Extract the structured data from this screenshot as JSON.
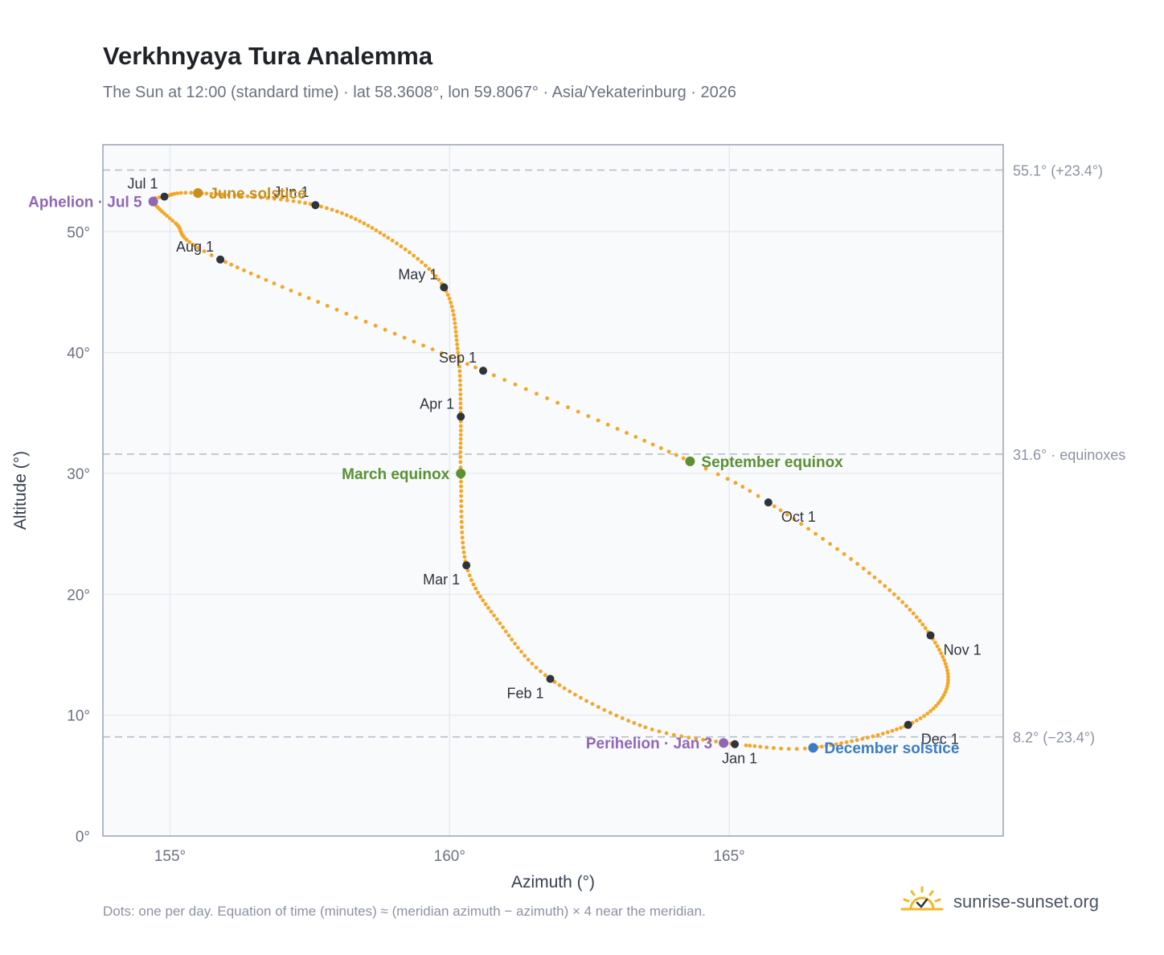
{
  "header": {
    "title": "Verkhnyaya Tura Analemma",
    "subtitle": "The Sun at 12:00 (standard time) · lat 58.3608°, lon 59.8067° · Asia/Yekaterinburg · 2026"
  },
  "footer": {
    "note": "Dots: one per day. Equation of time (minutes) ≈ (meridian azimuth − azimuth) × 4 near the meridian.",
    "brand": "sunrise-sunset.org"
  },
  "colors": {
    "curve": "#f5a623",
    "month_marker": "#2f343b",
    "solstice_june": "#c8901a",
    "solstice_december": "#3b7cc4",
    "equinox": "#5a9132",
    "apsis": "#9167b5",
    "reference_line": "#b6bfcc",
    "plot_bg": "#f8fafc",
    "axis_frame": "#9aa3b2"
  },
  "chart_data": {
    "type": "scatter",
    "xlabel": "Azimuth (°)",
    "ylabel": "Altitude (°)",
    "xlim": [
      153.8,
      169.9
    ],
    "ylim": [
      0,
      57.2
    ],
    "x_ticks": [
      155,
      160,
      165
    ],
    "x_tick_labels": [
      "155°",
      "160°",
      "165°"
    ],
    "y_ticks": [
      0,
      10,
      20,
      30,
      40,
      50
    ],
    "y_tick_labels": [
      "0°",
      "10°",
      "20°",
      "30°",
      "40°",
      "50°"
    ],
    "grid": true,
    "reference_lines": [
      {
        "y": 55.1,
        "label": "55.1° (+23.4°)"
      },
      {
        "y": 31.6,
        "label": "31.6° · equinoxes"
      },
      {
        "y": 8.2,
        "label": "8.2° (−23.4°)"
      }
    ],
    "analemma_path": [
      {
        "day": 1,
        "az": 165.1,
        "alt": 7.6
      },
      {
        "day": 15,
        "az": 163.5,
        "alt": 9.0
      },
      {
        "day": 32,
        "az": 161.8,
        "alt": 13.0
      },
      {
        "day": 46,
        "az": 160.9,
        "alt": 17.6
      },
      {
        "day": 60,
        "az": 160.3,
        "alt": 22.4
      },
      {
        "day": 79,
        "az": 160.2,
        "alt": 30.0
      },
      {
        "day": 91,
        "az": 160.2,
        "alt": 34.7
      },
      {
        "day": 105,
        "az": 160.15,
        "alt": 40.0
      },
      {
        "day": 121,
        "az": 159.9,
        "alt": 45.4
      },
      {
        "day": 136,
        "az": 158.9,
        "alt": 49.5
      },
      {
        "day": 152,
        "az": 157.6,
        "alt": 52.2
      },
      {
        "day": 172,
        "az": 155.5,
        "alt": 53.2
      },
      {
        "day": 182,
        "az": 154.9,
        "alt": 52.9
      },
      {
        "day": 186,
        "az": 154.7,
        "alt": 52.5
      },
      {
        "day": 197,
        "az": 155.1,
        "alt": 50.7
      },
      {
        "day": 213,
        "az": 155.9,
        "alt": 47.7
      },
      {
        "day": 244,
        "az": 160.6,
        "alt": 38.5
      },
      {
        "day": 266,
        "az": 164.3,
        "alt": 31.0
      },
      {
        "day": 274,
        "az": 165.7,
        "alt": 27.6
      },
      {
        "day": 290,
        "az": 167.6,
        "alt": 21.4
      },
      {
        "day": 305,
        "az": 168.6,
        "alt": 16.6
      },
      {
        "day": 320,
        "az": 168.9,
        "alt": 12.4
      },
      {
        "day": 335,
        "az": 168.2,
        "alt": 9.2
      },
      {
        "day": 355,
        "az": 166.5,
        "alt": 7.3
      },
      {
        "day": 365,
        "az": 165.3,
        "alt": 7.5
      }
    ],
    "month_markers": [
      {
        "label": "Jan 1",
        "az": 165.1,
        "alt": 7.6,
        "anchor": "below"
      },
      {
        "label": "Feb 1",
        "az": 161.8,
        "alt": 13.0,
        "anchor": "below-left"
      },
      {
        "label": "Mar 1",
        "az": 160.3,
        "alt": 22.4,
        "anchor": "below-left"
      },
      {
        "label": "Apr 1",
        "az": 160.2,
        "alt": 34.7,
        "anchor": "above-left"
      },
      {
        "label": "May 1",
        "az": 159.9,
        "alt": 45.4,
        "anchor": "above-left"
      },
      {
        "label": "Jun 1",
        "az": 157.6,
        "alt": 52.2,
        "anchor": "above-left"
      },
      {
        "label": "Jul 1",
        "az": 154.9,
        "alt": 52.9,
        "anchor": "above-left"
      },
      {
        "label": "Aug 1",
        "az": 155.9,
        "alt": 47.7,
        "anchor": "above-left"
      },
      {
        "label": "Sep 1",
        "az": 160.6,
        "alt": 38.5,
        "anchor": "above-left"
      },
      {
        "label": "Oct 1",
        "az": 165.7,
        "alt": 27.6,
        "anchor": "below-right"
      },
      {
        "label": "Nov 1",
        "az": 168.6,
        "alt": 16.6,
        "anchor": "below-right"
      },
      {
        "label": "Dec 1",
        "az": 168.2,
        "alt": 9.2,
        "anchor": "below-right"
      }
    ],
    "events": [
      {
        "label": "June solstice",
        "az": 155.5,
        "alt": 53.2,
        "color_key": "solstice_june",
        "anchor": "right"
      },
      {
        "label": "December solstice",
        "az": 166.5,
        "alt": 7.3,
        "color_key": "solstice_december",
        "anchor": "right"
      },
      {
        "label": "March equinox",
        "az": 160.2,
        "alt": 30.0,
        "color_key": "equinox",
        "anchor": "left"
      },
      {
        "label": "September equinox",
        "az": 164.3,
        "alt": 31.0,
        "color_key": "equinox",
        "anchor": "right"
      },
      {
        "label": "Aphelion · Jul 5",
        "az": 154.7,
        "alt": 52.5,
        "color_key": "apsis",
        "anchor": "left"
      },
      {
        "label": "Perihelion · Jan 3",
        "az": 164.9,
        "alt": 7.7,
        "color_key": "apsis",
        "anchor": "left"
      }
    ]
  }
}
